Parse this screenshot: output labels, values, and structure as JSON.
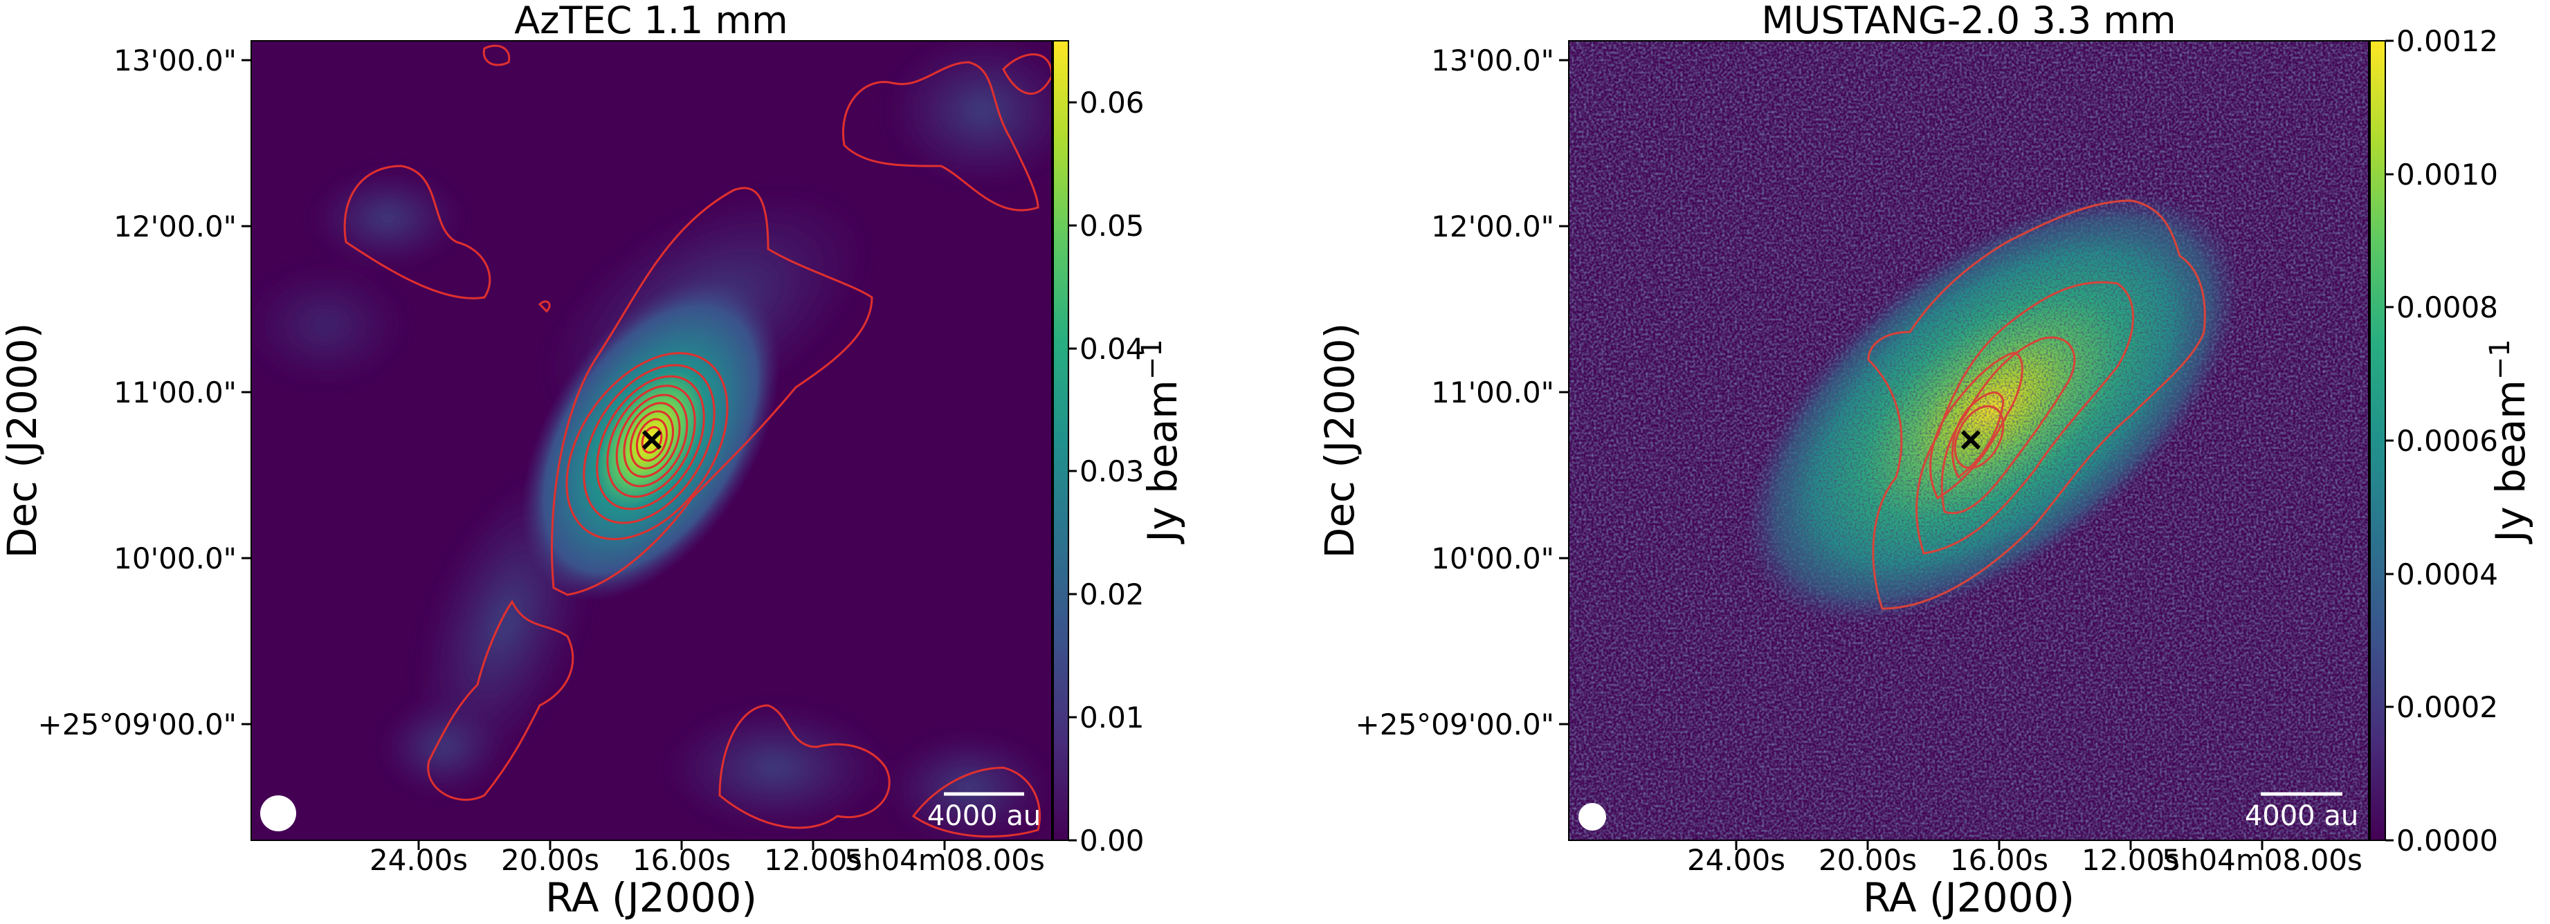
{
  "chart_data": [
    {
      "type": "heatmap",
      "title": "AzTEC 1.1 mm",
      "xlabel": "RA (J2000)",
      "ylabel": "Dec (J2000)",
      "xticks": [
        "24.00s",
        "20.00s",
        "16.00s",
        "12.00s",
        "5h04m08.00s"
      ],
      "yticks": [
        "13'00.0\"",
        "12'00.0\"",
        "11'00.0\"",
        "10'00.0\"",
        "+25°09'00.0\""
      ],
      "colorbar": {
        "label": "Jy beam",
        "label_superscript": "−1",
        "ticks": [
          "0.00",
          "0.01",
          "0.02",
          "0.03",
          "0.04",
          "0.05",
          "0.06"
        ],
        "range": [
          0,
          0.065
        ],
        "colormap": "viridis"
      },
      "scalebar_label": "4000 au",
      "contours": 10,
      "beam": "white circle, lower-left",
      "marker": "× at peak"
    },
    {
      "type": "heatmap",
      "title": "MUSTANG-2.0 3.3 mm",
      "xlabel": "RA (J2000)",
      "ylabel": "Dec (J2000)",
      "xticks": [
        "24.00s",
        "20.00s",
        "16.00s",
        "12.00s",
        "5h04m08.00s"
      ],
      "yticks": [
        "13'00.0\"",
        "12'00.0\"",
        "11'00.0\"",
        "10'00.0\"",
        "+25°09'00.0\""
      ],
      "colorbar": {
        "label": "Jy beam",
        "label_superscript": "−1",
        "ticks": [
          "0.0000",
          "0.0002",
          "0.0004",
          "0.0006",
          "0.0008",
          "0.0010",
          "0.0012"
        ],
        "range": [
          0,
          0.0012
        ],
        "colormap": "viridis"
      },
      "scalebar_label": "4000 au",
      "contours": 6,
      "beam": "white circle, lower-left",
      "marker": "× at peak"
    }
  ],
  "colors": {
    "contour": "#e0302e",
    "viridis_low": "#440154",
    "viridis_high": "#fde725"
  }
}
